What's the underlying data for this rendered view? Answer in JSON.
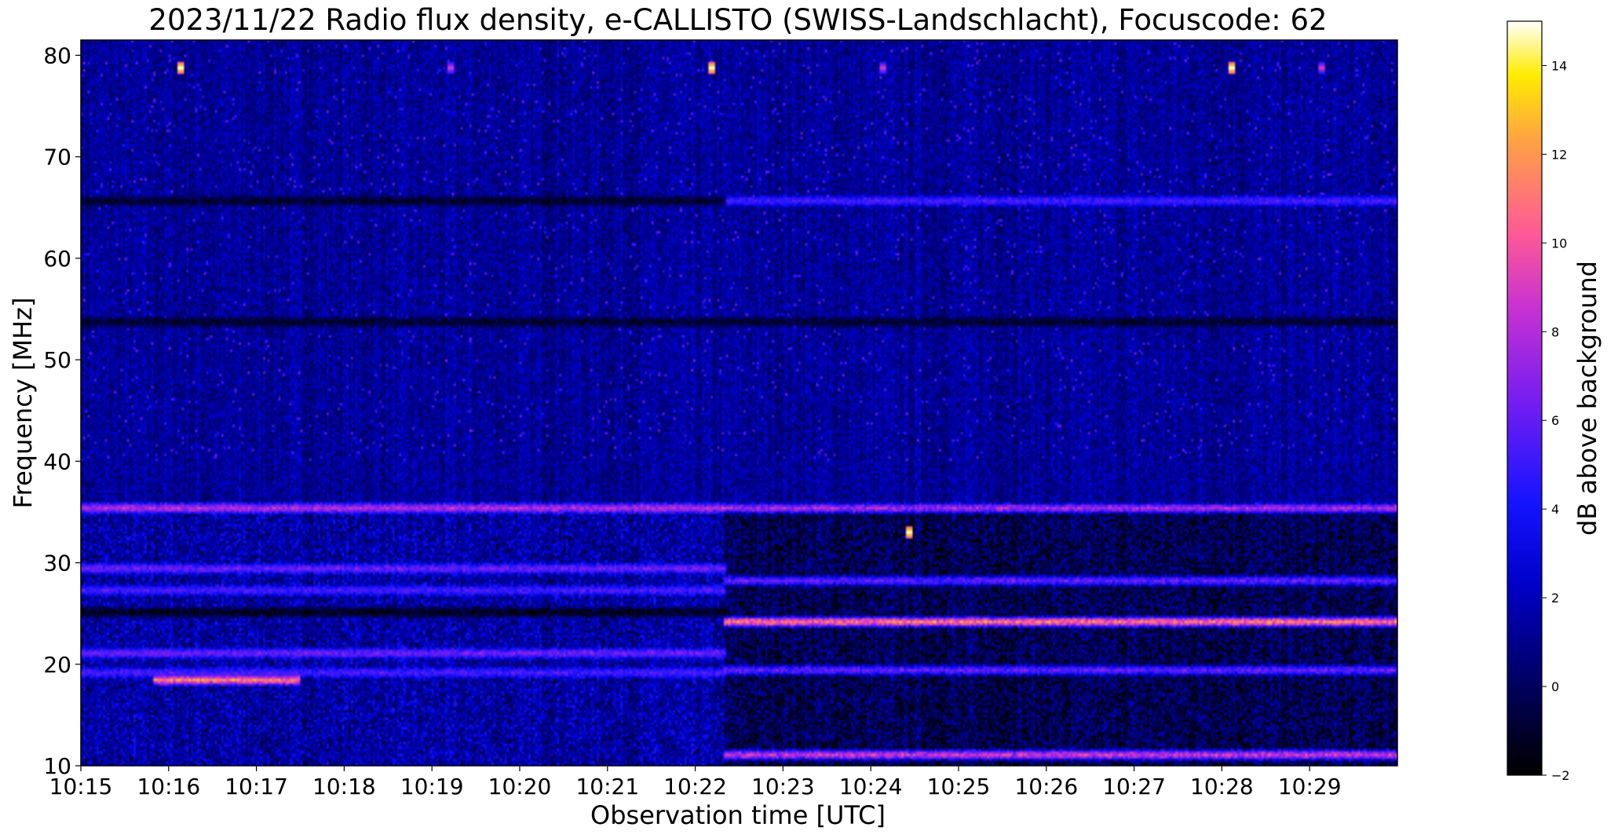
{
  "chart_data": {
    "type": "heatmap",
    "title": "2023/11/22  Radio flux density, e-CALLISTO (SWISS-Landschlacht), Focuscode: 62",
    "xlabel": "Observation time [UTC]",
    "ylabel": "Frequency [MHz]",
    "colorbar_label": "dB above background",
    "colormap": "gnuplot2",
    "xlim": [
      "10:15",
      "10:30"
    ],
    "x_ticks": [
      "10:15",
      "10:16",
      "10:17",
      "10:18",
      "10:19",
      "10:20",
      "10:21",
      "10:22",
      "10:23",
      "10:24",
      "10:25",
      "10:26",
      "10:27",
      "10:28",
      "10:29"
    ],
    "ylim": [
      10,
      81.5
    ],
    "y_ticks": [
      10,
      20,
      30,
      40,
      50,
      60,
      70,
      80
    ],
    "clim": [
      -2,
      15
    ],
    "colorbar_ticks": [
      -2,
      0,
      2,
      4,
      6,
      8,
      10,
      12,
      14
    ],
    "background_level_db": 1.2,
    "regime_change_time": "10:22:20",
    "features": [
      {
        "name": "band",
        "start": "10:15:00",
        "end": "10:30:00",
        "freq_mhz": 35.6,
        "db": 9
      },
      {
        "name": "band",
        "start": "10:22:20",
        "end": "10:30:00",
        "freq_mhz": 24.3,
        "db": 13
      },
      {
        "name": "band",
        "start": "10:15:00",
        "end": "10:22:20",
        "freq_mhz": 25.2,
        "db": -2
      },
      {
        "name": "band",
        "start": "10:15:00",
        "end": "10:30:00",
        "freq_mhz": 53.8,
        "db": -1.5
      },
      {
        "name": "band",
        "start": "10:15:50",
        "end": "10:17:30",
        "freq_mhz": 18.6,
        "db": 13
      },
      {
        "name": "band",
        "start": "10:15:00",
        "end": "10:22:20",
        "freq_mhz": 29.6,
        "db": 7
      },
      {
        "name": "band",
        "start": "10:15:00",
        "end": "10:22:20",
        "freq_mhz": 27.4,
        "db": 6
      },
      {
        "name": "band",
        "start": "10:15:00",
        "end": "10:22:20",
        "freq_mhz": 21.3,
        "db": 7
      },
      {
        "name": "band",
        "start": "10:15:00",
        "end": "10:22:20",
        "freq_mhz": 19.3,
        "db": 6
      },
      {
        "name": "band",
        "start": "10:22:20",
        "end": "10:30:00",
        "freq_mhz": 11.1,
        "db": 10
      },
      {
        "name": "band",
        "start": "10:22:20",
        "end": "10:30:00",
        "freq_mhz": 65.7,
        "db": 6
      },
      {
        "name": "band",
        "start": "10:15:00",
        "end": "10:22:20",
        "freq_mhz": 65.7,
        "db": -1.5
      },
      {
        "name": "band",
        "start": "10:22:20",
        "end": "10:30:00",
        "freq_mhz": 19.6,
        "db": 7
      },
      {
        "name": "band",
        "start": "10:22:20",
        "end": "10:30:00",
        "freq_mhz": 28.3,
        "db": 7
      },
      {
        "name": "spot",
        "time": "10:16:08",
        "freq_mhz": 78.8,
        "db": 15
      },
      {
        "name": "spot",
        "time": "10:19:12",
        "freq_mhz": 78.8,
        "db": 9
      },
      {
        "name": "spot",
        "time": "10:22:10",
        "freq_mhz": 78.8,
        "db": 15
      },
      {
        "name": "spot",
        "time": "10:24:08",
        "freq_mhz": 78.8,
        "db": 9
      },
      {
        "name": "spot",
        "time": "10:28:06",
        "freq_mhz": 78.8,
        "db": 15
      },
      {
        "name": "spot",
        "time": "10:29:08",
        "freq_mhz": 78.8,
        "db": 9
      },
      {
        "name": "spot",
        "time": "10:24:25",
        "freq_mhz": 33.0,
        "db": 15
      }
    ]
  }
}
